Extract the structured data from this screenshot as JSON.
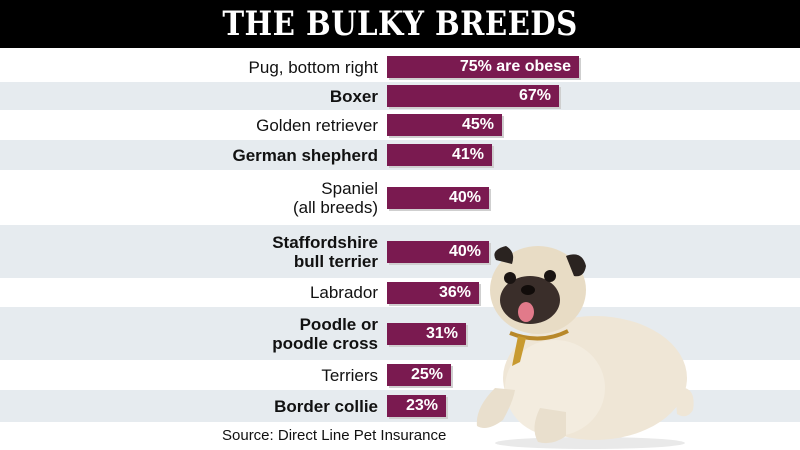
{
  "title": "THE BULKY BREEDS",
  "source": "Source: Direct Line Pet Insurance",
  "colors": {
    "bar": "#7a1a50",
    "band_alt": "#e6ebef",
    "band": "#ffffff",
    "title_bg": "#000000"
  },
  "chart_data": {
    "type": "bar",
    "orientation": "horizontal",
    "title": "THE BULKY BREEDS",
    "unit": "%",
    "xlim": [
      0,
      100
    ],
    "categories": [
      "Pug, bottom right",
      "Boxer",
      "Golden retriever",
      "German shepherd",
      "Spaniel (all breeds)",
      "Staffordshire bull terrier",
      "Labrador",
      "Poodle or poodle cross",
      "Terriers",
      "Border collie"
    ],
    "values": [
      75,
      67,
      45,
      41,
      40,
      40,
      36,
      31,
      25,
      23
    ],
    "rows": [
      {
        "lines": [
          "Pug, bottom right"
        ],
        "bold": false,
        "value": 75,
        "value_label": "75% are obese"
      },
      {
        "lines": [
          "Boxer"
        ],
        "bold": true,
        "value": 67,
        "value_label": "67%"
      },
      {
        "lines": [
          "Golden retriever"
        ],
        "bold": false,
        "value": 45,
        "value_label": "45%"
      },
      {
        "lines": [
          "German shepherd"
        ],
        "bold": true,
        "value": 41,
        "value_label": "41%"
      },
      {
        "lines": [
          "Spaniel",
          "(all breeds)"
        ],
        "bold": false,
        "value": 40,
        "value_label": "40%"
      },
      {
        "lines": [
          "Staffordshire",
          "bull terrier"
        ],
        "bold": true,
        "value": 40,
        "value_label": "40%"
      },
      {
        "lines": [
          "Labrador"
        ],
        "bold": false,
        "value": 36,
        "value_label": "36%"
      },
      {
        "lines": [
          "Poodle or",
          "poodle cross"
        ],
        "bold": true,
        "value": 31,
        "value_label": "31%"
      },
      {
        "lines": [
          "Terriers"
        ],
        "bold": false,
        "value": 25,
        "value_label": "25%"
      },
      {
        "lines": [
          "Border collie"
        ],
        "bold": true,
        "value": 23,
        "value_label": "23%"
      }
    ]
  }
}
